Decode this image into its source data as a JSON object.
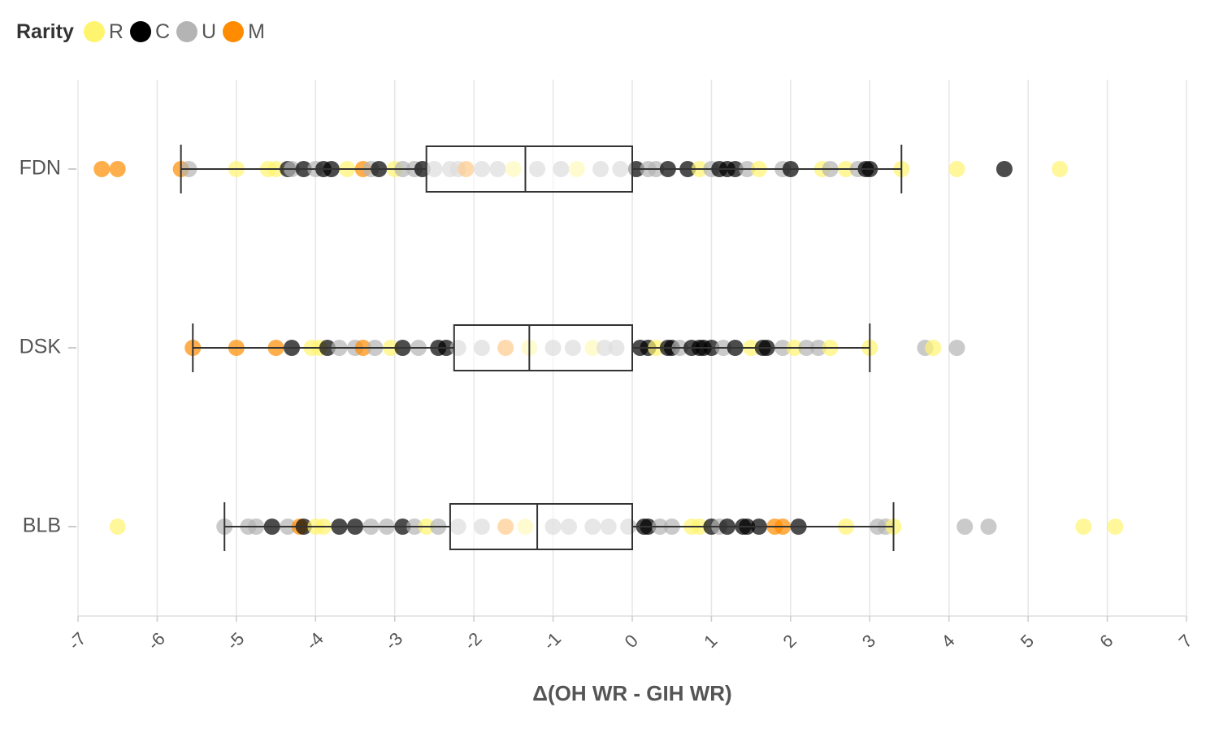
{
  "chart_data": {
    "type": "box-strip",
    "title": "",
    "xlabel": "Δ(OH WR - GIH WR)",
    "ylabel": "",
    "xlim": [
      -7,
      7
    ],
    "xticks": [
      -7,
      -6,
      -5,
      -4,
      -3,
      -2,
      -1,
      0,
      1,
      2,
      3,
      4,
      5,
      6,
      7
    ],
    "grid": true,
    "legend": {
      "title": "Rarity",
      "placement": "top-left",
      "items": [
        {
          "label": "R",
          "color": "#fff46e"
        },
        {
          "label": "C",
          "color": "#000000"
        },
        {
          "label": "U",
          "color": "#b4b4b4"
        },
        {
          "label": "M",
          "color": "#ff8c00"
        }
      ]
    },
    "categories": [
      "FDN",
      "DSK",
      "BLB"
    ],
    "boxes": [
      {
        "set": "FDN",
        "whisker_low": -5.7,
        "q1": -2.6,
        "median": -1.35,
        "q3": 0.0,
        "whisker_high": 3.4
      },
      {
        "set": "DSK",
        "whisker_low": -5.55,
        "q1": -2.25,
        "median": -1.3,
        "q3": 0.0,
        "whisker_high": 3.0
      },
      {
        "set": "BLB",
        "whisker_low": -5.15,
        "q1": -2.3,
        "median": -1.2,
        "q3": 0.0,
        "whisker_high": 3.3
      }
    ],
    "points": [
      {
        "set": "FDN",
        "r": "M",
        "x": -6.7
      },
      {
        "set": "FDN",
        "r": "M",
        "x": -6.5
      },
      {
        "set": "FDN",
        "r": "M",
        "x": -5.7
      },
      {
        "set": "FDN",
        "r": "U",
        "x": -5.6
      },
      {
        "set": "FDN",
        "r": "R",
        "x": -5.0
      },
      {
        "set": "FDN",
        "r": "R",
        "x": -4.6
      },
      {
        "set": "FDN",
        "r": "R",
        "x": -4.5
      },
      {
        "set": "FDN",
        "r": "C",
        "x": -4.35
      },
      {
        "set": "FDN",
        "r": "U",
        "x": -4.3
      },
      {
        "set": "FDN",
        "r": "C",
        "x": -4.15
      },
      {
        "set": "FDN",
        "r": "U",
        "x": -4.0
      },
      {
        "set": "FDN",
        "r": "C",
        "x": -3.9
      },
      {
        "set": "FDN",
        "r": "C",
        "x": -3.8
      },
      {
        "set": "FDN",
        "r": "R",
        "x": -3.6
      },
      {
        "set": "FDN",
        "r": "M",
        "x": -3.4
      },
      {
        "set": "FDN",
        "r": "U",
        "x": -3.3
      },
      {
        "set": "FDN",
        "r": "C",
        "x": -3.2
      },
      {
        "set": "FDN",
        "r": "R",
        "x": -3.0
      },
      {
        "set": "FDN",
        "r": "U",
        "x": -2.9
      },
      {
        "set": "FDN",
        "r": "U",
        "x": -2.75
      },
      {
        "set": "FDN",
        "r": "C",
        "x": -2.65
      },
      {
        "set": "FDN",
        "r": "U",
        "x": -2.5
      },
      {
        "set": "FDN",
        "r": "U",
        "x": -2.3
      },
      {
        "set": "FDN",
        "r": "U",
        "x": -2.2
      },
      {
        "set": "FDN",
        "r": "M",
        "x": -2.1
      },
      {
        "set": "FDN",
        "r": "U",
        "x": -1.9
      },
      {
        "set": "FDN",
        "r": "U",
        "x": -1.7
      },
      {
        "set": "FDN",
        "r": "R",
        "x": -1.5
      },
      {
        "set": "FDN",
        "r": "U",
        "x": -1.2
      },
      {
        "set": "FDN",
        "r": "U",
        "x": -0.9
      },
      {
        "set": "FDN",
        "r": "R",
        "x": -0.7
      },
      {
        "set": "FDN",
        "r": "U",
        "x": -0.4
      },
      {
        "set": "FDN",
        "r": "U",
        "x": -0.15
      },
      {
        "set": "FDN",
        "r": "C",
        "x": 0.05
      },
      {
        "set": "FDN",
        "r": "U",
        "x": 0.2
      },
      {
        "set": "FDN",
        "r": "U",
        "x": 0.3
      },
      {
        "set": "FDN",
        "r": "C",
        "x": 0.45
      },
      {
        "set": "FDN",
        "r": "C",
        "x": 0.7
      },
      {
        "set": "FDN",
        "r": "R",
        "x": 0.85
      },
      {
        "set": "FDN",
        "r": "U",
        "x": 1.0
      },
      {
        "set": "FDN",
        "r": "C",
        "x": 1.1
      },
      {
        "set": "FDN",
        "r": "C",
        "x": 1.2
      },
      {
        "set": "FDN",
        "r": "C",
        "x": 1.3
      },
      {
        "set": "FDN",
        "r": "U",
        "x": 1.45
      },
      {
        "set": "FDN",
        "r": "R",
        "x": 1.6
      },
      {
        "set": "FDN",
        "r": "U",
        "x": 1.9
      },
      {
        "set": "FDN",
        "r": "C",
        "x": 2.0
      },
      {
        "set": "FDN",
        "r": "R",
        "x": 2.4
      },
      {
        "set": "FDN",
        "r": "U",
        "x": 2.5
      },
      {
        "set": "FDN",
        "r": "R",
        "x": 2.7
      },
      {
        "set": "FDN",
        "r": "U",
        "x": 2.85
      },
      {
        "set": "FDN",
        "r": "C",
        "x": 2.95
      },
      {
        "set": "FDN",
        "r": "C",
        "x": 3.0
      },
      {
        "set": "FDN",
        "r": "R",
        "x": 3.4
      },
      {
        "set": "FDN",
        "r": "R",
        "x": 4.1
      },
      {
        "set": "FDN",
        "r": "C",
        "x": 4.7
      },
      {
        "set": "FDN",
        "r": "R",
        "x": 5.4
      },
      {
        "set": "DSK",
        "r": "M",
        "x": -5.55
      },
      {
        "set": "DSK",
        "r": "M",
        "x": -5.0
      },
      {
        "set": "DSK",
        "r": "M",
        "x": -4.5
      },
      {
        "set": "DSK",
        "r": "C",
        "x": -4.3
      },
      {
        "set": "DSK",
        "r": "R",
        "x": -4.05
      },
      {
        "set": "DSK",
        "r": "R",
        "x": -3.95
      },
      {
        "set": "DSK",
        "r": "C",
        "x": -3.85
      },
      {
        "set": "DSK",
        "r": "U",
        "x": -3.7
      },
      {
        "set": "DSK",
        "r": "U",
        "x": -3.5
      },
      {
        "set": "DSK",
        "r": "M",
        "x": -3.4
      },
      {
        "set": "DSK",
        "r": "U",
        "x": -3.25
      },
      {
        "set": "DSK",
        "r": "R",
        "x": -3.05
      },
      {
        "set": "DSK",
        "r": "C",
        "x": -2.9
      },
      {
        "set": "DSK",
        "r": "U",
        "x": -2.7
      },
      {
        "set": "DSK",
        "r": "C",
        "x": -2.45
      },
      {
        "set": "DSK",
        "r": "C",
        "x": -2.35
      },
      {
        "set": "DSK",
        "r": "U",
        "x": -2.2
      },
      {
        "set": "DSK",
        "r": "U",
        "x": -1.9
      },
      {
        "set": "DSK",
        "r": "M",
        "x": -1.6
      },
      {
        "set": "DSK",
        "r": "R",
        "x": -1.3
      },
      {
        "set": "DSK",
        "r": "U",
        "x": -1.0
      },
      {
        "set": "DSK",
        "r": "U",
        "x": -0.75
      },
      {
        "set": "DSK",
        "r": "R",
        "x": -0.5
      },
      {
        "set": "DSK",
        "r": "U",
        "x": -0.35
      },
      {
        "set": "DSK",
        "r": "U",
        "x": -0.2
      },
      {
        "set": "DSK",
        "r": "C",
        "x": 0.1
      },
      {
        "set": "DSK",
        "r": "C",
        "x": 0.2
      },
      {
        "set": "DSK",
        "r": "R",
        "x": 0.3
      },
      {
        "set": "DSK",
        "r": "C",
        "x": 0.45
      },
      {
        "set": "DSK",
        "r": "C",
        "x": 0.5
      },
      {
        "set": "DSK",
        "r": "U",
        "x": 0.6
      },
      {
        "set": "DSK",
        "r": "C",
        "x": 0.75
      },
      {
        "set": "DSK",
        "r": "C",
        "x": 0.85
      },
      {
        "set": "DSK",
        "r": "C",
        "x": 0.9
      },
      {
        "set": "DSK",
        "r": "C",
        "x": 1.0
      },
      {
        "set": "DSK",
        "r": "U",
        "x": 1.15
      },
      {
        "set": "DSK",
        "r": "C",
        "x": 1.3
      },
      {
        "set": "DSK",
        "r": "R",
        "x": 1.5
      },
      {
        "set": "DSK",
        "r": "C",
        "x": 1.65
      },
      {
        "set": "DSK",
        "r": "C",
        "x": 1.7
      },
      {
        "set": "DSK",
        "r": "U",
        "x": 1.9
      },
      {
        "set": "DSK",
        "r": "R",
        "x": 2.05
      },
      {
        "set": "DSK",
        "r": "U",
        "x": 2.2
      },
      {
        "set": "DSK",
        "r": "U",
        "x": 2.35
      },
      {
        "set": "DSK",
        "r": "R",
        "x": 2.5
      },
      {
        "set": "DSK",
        "r": "R",
        "x": 3.0
      },
      {
        "set": "DSK",
        "r": "U",
        "x": 3.7
      },
      {
        "set": "DSK",
        "r": "R",
        "x": 3.8
      },
      {
        "set": "DSK",
        "r": "U",
        "x": 4.1
      },
      {
        "set": "BLB",
        "r": "R",
        "x": -6.5
      },
      {
        "set": "BLB",
        "r": "U",
        "x": -5.15
      },
      {
        "set": "BLB",
        "r": "U",
        "x": -4.85
      },
      {
        "set": "BLB",
        "r": "U",
        "x": -4.75
      },
      {
        "set": "BLB",
        "r": "C",
        "x": -4.55
      },
      {
        "set": "BLB",
        "r": "U",
        "x": -4.35
      },
      {
        "set": "BLB",
        "r": "M",
        "x": -4.2
      },
      {
        "set": "BLB",
        "r": "C",
        "x": -4.15
      },
      {
        "set": "BLB",
        "r": "R",
        "x": -4.0
      },
      {
        "set": "BLB",
        "r": "R",
        "x": -3.9
      },
      {
        "set": "BLB",
        "r": "C",
        "x": -3.7
      },
      {
        "set": "BLB",
        "r": "C",
        "x": -3.5
      },
      {
        "set": "BLB",
        "r": "U",
        "x": -3.3
      },
      {
        "set": "BLB",
        "r": "U",
        "x": -3.1
      },
      {
        "set": "BLB",
        "r": "C",
        "x": -2.9
      },
      {
        "set": "BLB",
        "r": "U",
        "x": -2.75
      },
      {
        "set": "BLB",
        "r": "R",
        "x": -2.6
      },
      {
        "set": "BLB",
        "r": "U",
        "x": -2.45
      },
      {
        "set": "BLB",
        "r": "U",
        "x": -2.2
      },
      {
        "set": "BLB",
        "r": "U",
        "x": -1.9
      },
      {
        "set": "BLB",
        "r": "M",
        "x": -1.6
      },
      {
        "set": "BLB",
        "r": "R",
        "x": -1.35
      },
      {
        "set": "BLB",
        "r": "U",
        "x": -1.0
      },
      {
        "set": "BLB",
        "r": "U",
        "x": -0.8
      },
      {
        "set": "BLB",
        "r": "U",
        "x": -0.5
      },
      {
        "set": "BLB",
        "r": "U",
        "x": -0.3
      },
      {
        "set": "BLB",
        "r": "U",
        "x": -0.05
      },
      {
        "set": "BLB",
        "r": "C",
        "x": 0.15
      },
      {
        "set": "BLB",
        "r": "C",
        "x": 0.2
      },
      {
        "set": "BLB",
        "r": "U",
        "x": 0.35
      },
      {
        "set": "BLB",
        "r": "U",
        "x": 0.5
      },
      {
        "set": "BLB",
        "r": "R",
        "x": 0.75
      },
      {
        "set": "BLB",
        "r": "R",
        "x": 0.85
      },
      {
        "set": "BLB",
        "r": "C",
        "x": 1.0
      },
      {
        "set": "BLB",
        "r": "U",
        "x": 1.1
      },
      {
        "set": "BLB",
        "r": "C",
        "x": 1.2
      },
      {
        "set": "BLB",
        "r": "C",
        "x": 1.4
      },
      {
        "set": "BLB",
        "r": "C",
        "x": 1.45
      },
      {
        "set": "BLB",
        "r": "C",
        "x": 1.6
      },
      {
        "set": "BLB",
        "r": "M",
        "x": 1.8
      },
      {
        "set": "BLB",
        "r": "M",
        "x": 1.9
      },
      {
        "set": "BLB",
        "r": "C",
        "x": 2.1
      },
      {
        "set": "BLB",
        "r": "R",
        "x": 2.7
      },
      {
        "set": "BLB",
        "r": "U",
        "x": 3.1
      },
      {
        "set": "BLB",
        "r": "U",
        "x": 3.2
      },
      {
        "set": "BLB",
        "r": "R",
        "x": 3.3
      },
      {
        "set": "BLB",
        "r": "U",
        "x": 4.2
      },
      {
        "set": "BLB",
        "r": "U",
        "x": 4.5
      },
      {
        "set": "BLB",
        "r": "R",
        "x": 5.7
      },
      {
        "set": "BLB",
        "r": "R",
        "x": 6.1
      }
    ]
  }
}
